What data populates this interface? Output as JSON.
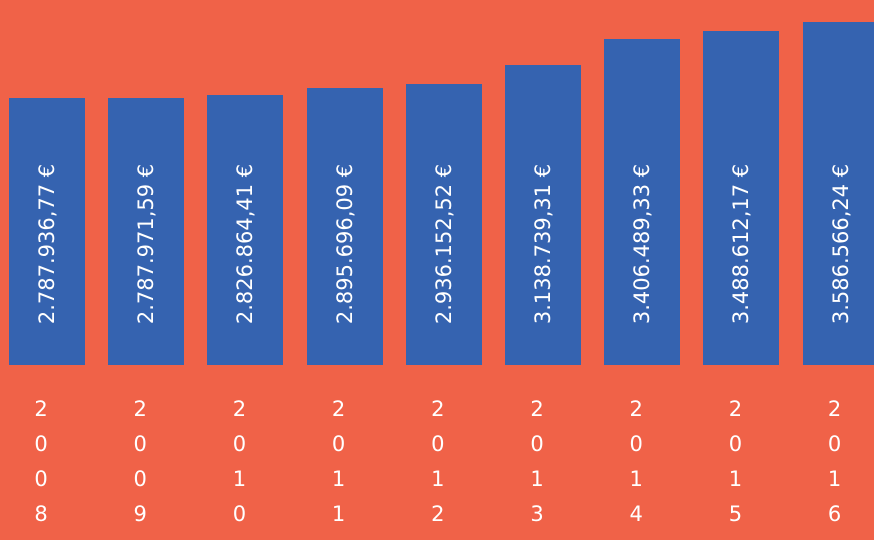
{
  "chart_data": {
    "type": "bar",
    "categories": [
      "2008",
      "2009",
      "2010",
      "2011",
      "2012",
      "2013",
      "2014",
      "2015",
      "2016"
    ],
    "values": [
      2787936.77,
      2787971.59,
      2826864.41,
      2895696.09,
      2936152.52,
      3138739.31,
      3406489.33,
      3488612.17,
      3586566.24
    ],
    "value_labels": [
      "2.787.936,77 €",
      "2.787.971,59 €",
      "2.826.864,41 €",
      "2.895.696,09 €",
      "2.936.152,52 €",
      "3.138.739,31 €",
      "3.406.489,33 €",
      "3.488.612,17 €",
      "3.586.566,24 €"
    ],
    "color": "#3563b0",
    "background": "#f06248"
  }
}
